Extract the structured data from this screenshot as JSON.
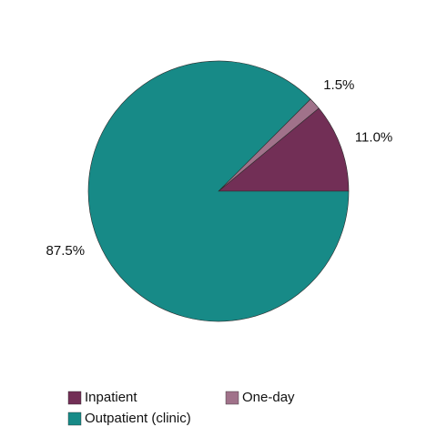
{
  "chart_data": {
    "type": "pie",
    "categories": [
      "Inpatient",
      "One-day",
      "Outpatient (clinic)"
    ],
    "values": [
      11.0,
      1.5,
      87.5
    ],
    "value_labels": [
      "11.0%",
      "1.5%",
      "87.5%"
    ],
    "colors": [
      "#722f56",
      "#a0728a",
      "#178a87"
    ]
  }
}
